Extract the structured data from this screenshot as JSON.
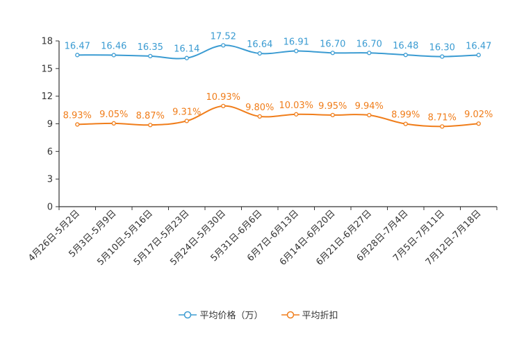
{
  "chart_data": {
    "type": "line",
    "categories": [
      "4月26日-5月2日",
      "5月3日-5月9日",
      "5月10日-5月16日",
      "5月17日-5月23日",
      "5月24日-5月30日",
      "5月31日-6月6日",
      "6月7日-6月13日",
      "6月14日-6月20日",
      "6月21日-6月27日",
      "6月28日-7月4日",
      "7月5日-7月11日",
      "7月12日-7月18日"
    ],
    "series": [
      {
        "name": "平均价格（万）",
        "color": "#3a9bd2",
        "values": [
          16.47,
          16.46,
          16.35,
          16.14,
          17.52,
          16.64,
          16.91,
          16.7,
          16.7,
          16.48,
          16.3,
          16.47
        ],
        "labels": [
          "16.47",
          "16.46",
          "16.35",
          "16.14",
          "17.52",
          "16.64",
          "16.91",
          "16.70",
          "16.70",
          "16.48",
          "16.30",
          "16.47"
        ]
      },
      {
        "name": "平均折扣",
        "color": "#f07d1a",
        "values": [
          8.93,
          9.05,
          8.87,
          9.31,
          10.93,
          9.8,
          10.03,
          9.95,
          9.94,
          8.99,
          8.71,
          9.02
        ],
        "labels": [
          "8.93%",
          "9.05%",
          "8.87%",
          "9.31%",
          "10.93%",
          "9.80%",
          "10.03%",
          "9.95%",
          "9.94%",
          "8.99%",
          "8.71%",
          "9.02%"
        ]
      }
    ],
    "ylim": [
      0,
      18
    ],
    "yticks": [
      "0",
      "3",
      "6",
      "9",
      "12",
      "15",
      "18"
    ],
    "legend_position": "bottom"
  }
}
